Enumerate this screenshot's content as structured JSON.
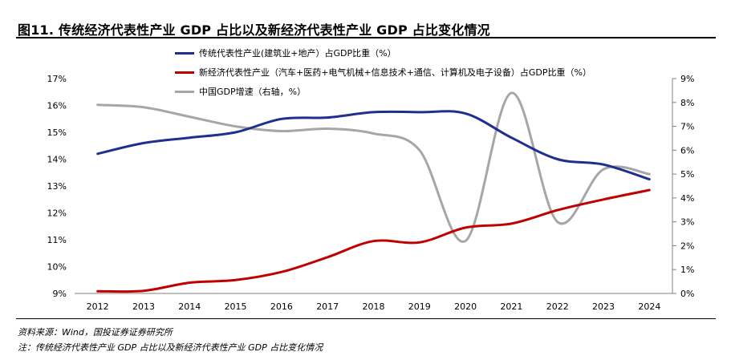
{
  "header": {
    "title": "图11. 传统经济代表性产业 GDP 占比以及新经济代表性产业 GDP 占比变化情况"
  },
  "footer": {
    "source": "资料来源：Wind，国投证券证券研究所",
    "note": "注：传统经济代表性产业 GDP 占比以及新经济代表性产业 GDP 占比变化情况"
  },
  "chart_data": {
    "type": "line",
    "legend_position": "top-left",
    "grid": false,
    "x": [
      "2012",
      "2013",
      "2014",
      "2015",
      "2016",
      "2017",
      "2018",
      "2019",
      "2020",
      "2021",
      "2022",
      "2023",
      "2024"
    ],
    "y_left": {
      "ticks": [
        "9%",
        "10%",
        "11%",
        "12%",
        "13%",
        "14%",
        "15%",
        "16%",
        "17%"
      ],
      "range": [
        9,
        17
      ]
    },
    "y_right": {
      "ticks": [
        "0%",
        "1%",
        "2%",
        "3%",
        "4%",
        "5%",
        "6%",
        "7%",
        "8%",
        "9%"
      ],
      "range": [
        0,
        9
      ]
    },
    "series": [
      {
        "name": "传统代表性产业(建筑业+地产）占GDP比重（%）",
        "axis": "left",
        "color": "#1f2f8f",
        "values": [
          14.2,
          14.6,
          14.8,
          15.0,
          15.5,
          15.55,
          15.75,
          15.75,
          15.7,
          14.8,
          14.0,
          13.8,
          13.25
        ]
      },
      {
        "name": "新经济代表性产业（汽车+医药+电气机械+信息技术+通信、计算机及电子设备）占GDP比重（%）",
        "axis": "left",
        "color": "#c00000",
        "values": [
          9.08,
          9.1,
          9.4,
          9.5,
          9.8,
          10.35,
          10.95,
          10.9,
          11.45,
          11.6,
          12.1,
          12.5,
          12.85
        ]
      },
      {
        "name": "中国GDP增速（右轴，%）",
        "axis": "right",
        "color": "#a6a6a6",
        "values": [
          7.9,
          7.8,
          7.4,
          7.0,
          6.8,
          6.9,
          6.7,
          6.0,
          2.2,
          8.4,
          3.0,
          5.2,
          5.0
        ]
      }
    ]
  }
}
